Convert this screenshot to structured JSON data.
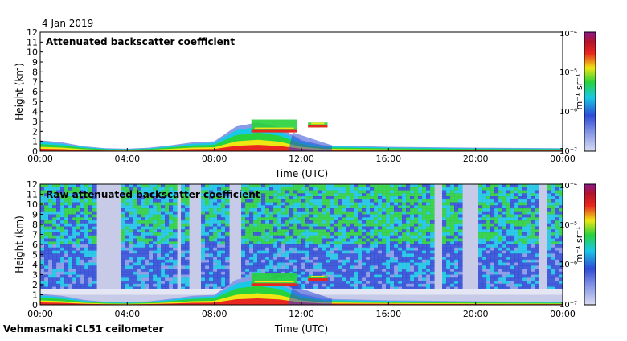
{
  "date_label": "4 Jan 2019",
  "instrument_label": "Vehmasmaki CL51 ceilometer",
  "colors": {
    "bg": "#ffffff",
    "noise": "#c8cbe8",
    "blue": "#2f4bd6",
    "cyan": "#19c8e6",
    "green": "#28d23c",
    "yellow": "#f0e614",
    "red": "#e8281e",
    "dark": "#7a0a14"
  },
  "chart_data": [
    {
      "type": "heatmap",
      "title": "Attenuated backscatter coefficient",
      "xlabel": "Time (UTC)",
      "ylabel": "Height (km)",
      "x_ticks": [
        "00:00",
        "04:00",
        "08:00",
        "12:00",
        "16:00",
        "20:00",
        "00:00"
      ],
      "y_ticks": [
        "0",
        "1",
        "2",
        "3",
        "4",
        "5",
        "6",
        "7",
        "8",
        "9",
        "10",
        "11",
        "12"
      ],
      "xlim_hours": [
        0,
        24
      ],
      "ylim_km": [
        0,
        12
      ],
      "colorbar": {
        "label": "m⁻¹ sr⁻¹",
        "scale": "log",
        "ticks": [
          "10⁻⁴",
          "10⁻⁵",
          "10⁻⁶",
          "10⁻⁷"
        ]
      },
      "boundary_layer_top_km": [
        {
          "t": 0,
          "h": 1.1
        },
        {
          "t": 1,
          "h": 0.9
        },
        {
          "t": 2,
          "h": 0.5
        },
        {
          "t": 3,
          "h": 0.3
        },
        {
          "t": 4,
          "h": 0.25
        },
        {
          "t": 5,
          "h": 0.35
        },
        {
          "t": 6,
          "h": 0.6
        },
        {
          "t": 7,
          "h": 0.9
        },
        {
          "t": 8,
          "h": 1.0
        },
        {
          "t": 9,
          "h": 2.5
        },
        {
          "t": 10,
          "h": 2.9
        },
        {
          "t": 11,
          "h": 2.4
        },
        {
          "t": 12,
          "h": 1.1
        },
        {
          "t": 13,
          "h": 0.6
        },
        {
          "t": 16,
          "h": 0.45
        },
        {
          "t": 20,
          "h": 0.35
        },
        {
          "t": 24,
          "h": 0.3
        }
      ],
      "cloud_layers": [
        {
          "start_h": 12.3,
          "end_h": 13.2,
          "base_km": 2.4,
          "top_km": 2.9
        },
        {
          "start_h": 9.7,
          "end_h": 11.8,
          "base_km": 1.9,
          "top_km": 3.2
        }
      ]
    },
    {
      "type": "heatmap",
      "title": "Raw attenuated backscatter coefficient",
      "xlabel": "Time (UTC)",
      "ylabel": "Height (km)",
      "x_ticks": [
        "00:00",
        "04:00",
        "08:00",
        "12:00",
        "16:00",
        "20:00",
        "00:00"
      ],
      "y_ticks": [
        "0",
        "1",
        "2",
        "3",
        "4",
        "5",
        "6",
        "7",
        "8",
        "9",
        "10",
        "11",
        "12"
      ],
      "xlim_hours": [
        0,
        24
      ],
      "ylim_km": [
        0,
        12
      ],
      "colorbar": {
        "label": "m⁻¹ sr⁻¹",
        "scale": "log",
        "ticks": [
          "10⁻⁴",
          "10⁻⁵",
          "10⁻⁶",
          "10⁻⁷"
        ]
      },
      "clear_sky_intervals_hours": [
        [
          2.6,
          3.7
        ],
        [
          6.2,
          6.5
        ],
        [
          6.9,
          7.3
        ],
        [
          8.6,
          9.2
        ],
        [
          18.1,
          18.5
        ],
        [
          19.3,
          20.1
        ],
        [
          22.9,
          23.3
        ]
      ]
    }
  ]
}
